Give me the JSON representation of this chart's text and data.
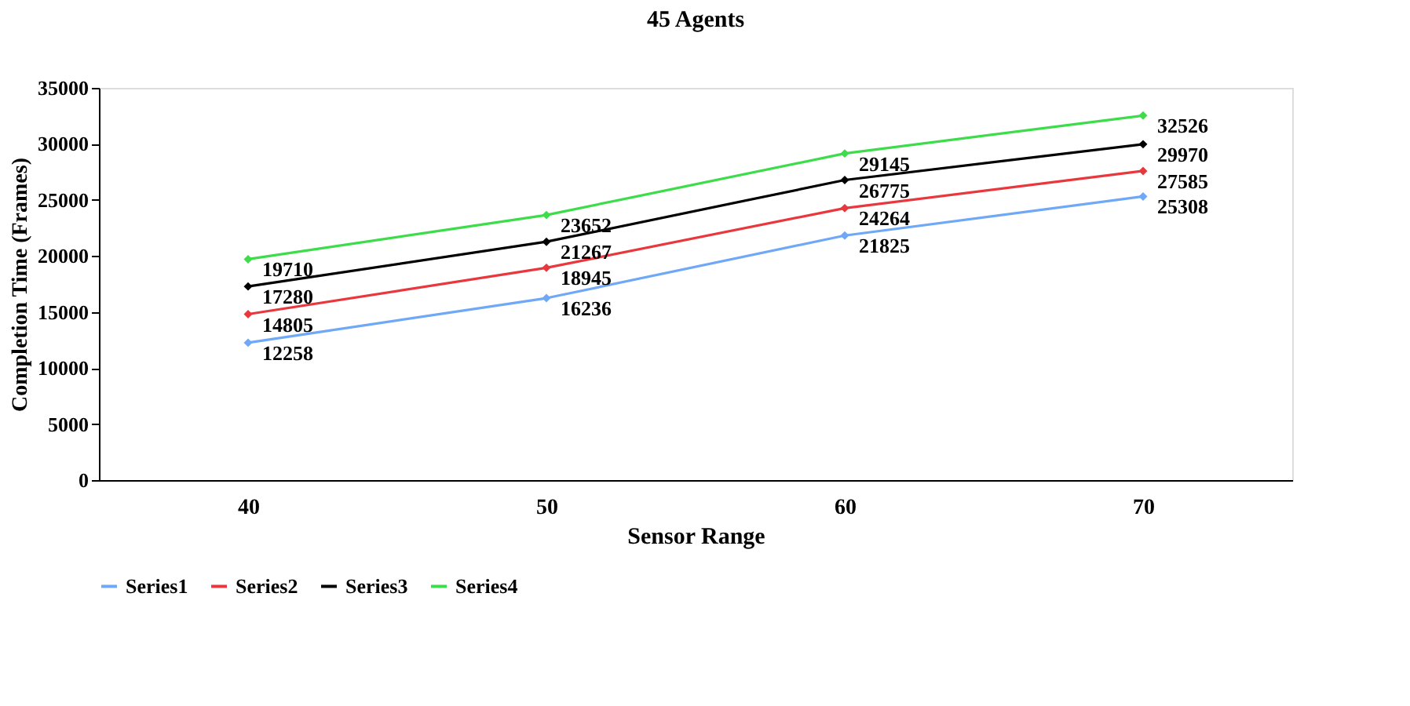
{
  "chart_data": {
    "type": "line",
    "title": "45 Agents",
    "xlabel": "Sensor Range",
    "ylabel": "Completion Time (Frames)",
    "categories": [
      "40",
      "50",
      "60",
      "70"
    ],
    "series": [
      {
        "name": "Series1",
        "color": "#6fa8f7",
        "values": [
          12258,
          16236,
          21825,
          25308
        ]
      },
      {
        "name": "Series2",
        "color": "#e8383d",
        "values": [
          14805,
          18945,
          24264,
          27585
        ]
      },
      {
        "name": "Series3",
        "color": "#000000",
        "values": [
          17280,
          21267,
          26775,
          29970
        ]
      },
      {
        "name": "Series4",
        "color": "#3ddc4a",
        "values": [
          19710,
          23652,
          29145,
          32526
        ]
      }
    ],
    "ylim": [
      0,
      35000
    ],
    "yticks": [
      0,
      5000,
      10000,
      15000,
      20000,
      25000,
      30000,
      35000
    ],
    "data_labels": true,
    "grid": false,
    "legend": "bottom",
    "marker": "diamond",
    "line_style": "solid"
  }
}
